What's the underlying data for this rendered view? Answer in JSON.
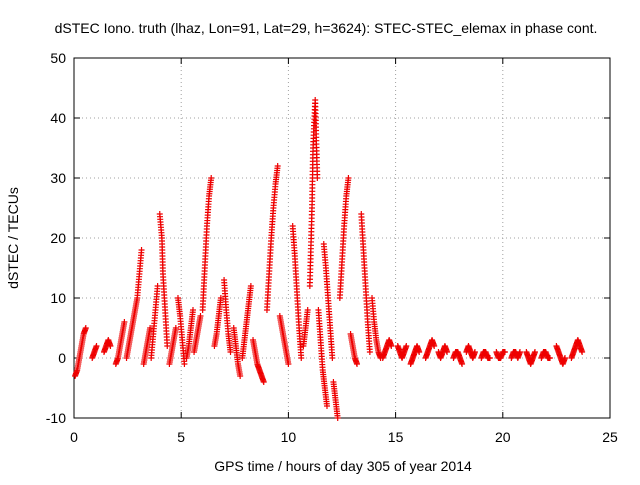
{
  "chart_data": {
    "type": "scatter",
    "title": "dSTEC Iono. truth (lhaz, Lon=91, Lat=29, h=3624): STEC-STEC_elemax in phase cont.",
    "xlabel": "GPS time / hours of day 305 of year 2014",
    "ylabel": "dSTEC  / TECUs",
    "xlim": [
      0,
      25
    ],
    "ylim": [
      -10,
      50
    ],
    "x_ticks": [
      0,
      5,
      10,
      15,
      20,
      25
    ],
    "y_ticks": [
      -10,
      0,
      10,
      20,
      30,
      40,
      50
    ],
    "x_tick_labels": [
      "0",
      "5",
      "10",
      "15",
      "20",
      "25"
    ],
    "y_tick_labels": [
      "-10",
      "0",
      "10",
      "20",
      "30",
      "40",
      "50"
    ],
    "grid": true,
    "legend": "none",
    "marker": "+",
    "series_color": "#ee0000",
    "arcs": [
      {
        "x": [
          0.05,
          0.15,
          0.25,
          0.35,
          0.45,
          0.55
        ],
        "y": [
          -3,
          -2,
          0,
          2,
          4,
          5
        ]
      },
      {
        "x": [
          0.85,
          0.95,
          1.05
        ],
        "y": [
          0,
          1,
          2
        ]
      },
      {
        "x": [
          1.4,
          1.5,
          1.6,
          1.7
        ],
        "y": [
          1,
          2,
          3,
          2
        ]
      },
      {
        "x": [
          1.95,
          2.05,
          2.15,
          2.25,
          2.35
        ],
        "y": [
          -1,
          0,
          2,
          4,
          6
        ]
      },
      {
        "x": [
          2.45,
          2.55,
          2.65,
          2.75,
          2.85,
          2.95,
          3.05,
          3.15
        ],
        "y": [
          0,
          2,
          4,
          6,
          8,
          10,
          14,
          18
        ]
      },
      {
        "x": [
          3.25,
          3.35,
          3.45,
          3.55
        ],
        "y": [
          -1,
          1,
          3,
          5
        ]
      },
      {
        "x": [
          3.6,
          3.7,
          3.8,
          3.9
        ],
        "y": [
          0,
          4,
          8,
          12
        ]
      },
      {
        "x": [
          4.0,
          4.1,
          4.15,
          4.25,
          4.35
        ],
        "y": [
          24,
          20,
          14,
          8,
          2
        ]
      },
      {
        "x": [
          4.45,
          4.55,
          4.65,
          4.75
        ],
        "y": [
          -1,
          1,
          3,
          5
        ]
      },
      {
        "x": [
          4.85,
          4.95,
          5.05,
          5.15
        ],
        "y": [
          10,
          7,
          3,
          -1
        ]
      },
      {
        "x": [
          5.25,
          5.35,
          5.45,
          5.55
        ],
        "y": [
          0,
          2,
          5,
          8
        ]
      },
      {
        "x": [
          5.6,
          5.7,
          5.8,
          5.9
        ],
        "y": [
          1,
          3,
          5,
          7
        ]
      },
      {
        "x": [
          6.0,
          6.1,
          6.2,
          6.3,
          6.4
        ],
        "y": [
          8,
          15,
          22,
          27,
          30
        ]
      },
      {
        "x": [
          6.55,
          6.65,
          6.75,
          6.85
        ],
        "y": [
          2,
          4,
          7,
          10
        ]
      },
      {
        "x": [
          7.0,
          7.1,
          7.2,
          7.3
        ],
        "y": [
          13,
          8,
          4,
          1
        ]
      },
      {
        "x": [
          7.45,
          7.55,
          7.65,
          7.75
        ],
        "y": [
          5,
          2,
          -1,
          -3
        ]
      },
      {
        "x": [
          7.85,
          7.95,
          8.05,
          8.15,
          8.25
        ],
        "y": [
          0,
          3,
          6,
          9,
          12
        ]
      },
      {
        "x": [
          8.35,
          8.45,
          8.55,
          8.65,
          8.75,
          8.85
        ],
        "y": [
          3,
          1,
          -1,
          -2,
          -3,
          -4
        ]
      },
      {
        "x": [
          9.0,
          9.1,
          9.2,
          9.3,
          9.4,
          9.5
        ],
        "y": [
          8,
          14,
          20,
          25,
          29,
          32
        ]
      },
      {
        "x": [
          9.6,
          9.7,
          9.8,
          9.9,
          10.0
        ],
        "y": [
          7,
          5,
          3,
          1,
          -1
        ]
      },
      {
        "x": [
          10.2,
          10.3,
          10.4,
          10.5,
          10.6
        ],
        "y": [
          22,
          17,
          11,
          5,
          0
        ]
      },
      {
        "x": [
          10.7,
          10.8,
          10.9
        ],
        "y": [
          2,
          5,
          8
        ]
      },
      {
        "x": [
          11.0,
          11.1,
          11.15,
          11.25,
          11.35
        ],
        "y": [
          12,
          25,
          35,
          43,
          30
        ]
      },
      {
        "x": [
          11.4,
          11.5,
          11.6,
          11.7,
          11.8
        ],
        "y": [
          8,
          3,
          -2,
          -5,
          -8
        ]
      },
      {
        "x": [
          11.65,
          11.75,
          11.85,
          11.95,
          12.05
        ],
        "y": [
          19,
          15,
          10,
          5,
          0
        ]
      },
      {
        "x": [
          12.1,
          12.2,
          12.3
        ],
        "y": [
          -4,
          -7,
          -10
        ]
      },
      {
        "x": [
          12.4,
          12.5,
          12.6,
          12.7,
          12.8
        ],
        "y": [
          10,
          16,
          22,
          27,
          30
        ]
      },
      {
        "x": [
          12.9,
          13.0,
          13.1,
          13.2
        ],
        "y": [
          4,
          2,
          0,
          -1
        ]
      },
      {
        "x": [
          13.4,
          13.5,
          13.6,
          13.7,
          13.8
        ],
        "y": [
          24,
          18,
          12,
          6,
          1
        ]
      },
      {
        "x": [
          13.9,
          14.0,
          14.1,
          14.2,
          14.3
        ],
        "y": [
          10,
          6,
          3,
          1,
          0
        ]
      },
      {
        "x": [
          14.4,
          14.5,
          14.6,
          14.7,
          14.8
        ],
        "y": [
          0,
          1,
          2,
          3,
          2
        ]
      },
      {
        "x": [
          15.1,
          15.2,
          15.3,
          15.4,
          15.5
        ],
        "y": [
          2,
          1,
          0,
          1,
          2
        ]
      },
      {
        "x": [
          15.7,
          15.8,
          15.9,
          16.0,
          16.1
        ],
        "y": [
          -1,
          0,
          1,
          2,
          1
        ]
      },
      {
        "x": [
          16.4,
          16.5,
          16.6,
          16.7,
          16.8
        ],
        "y": [
          0,
          1,
          2,
          3,
          2
        ]
      },
      {
        "x": [
          17.0,
          17.1,
          17.2,
          17.3,
          17.4
        ],
        "y": [
          1,
          0,
          1,
          2,
          1
        ]
      },
      {
        "x": [
          17.7,
          17.8,
          17.9,
          18.0,
          18.1
        ],
        "y": [
          0,
          1,
          1,
          0,
          -1
        ]
      },
      {
        "x": [
          18.3,
          18.4,
          18.5,
          18.6,
          18.7
        ],
        "y": [
          1,
          2,
          1,
          0,
          1
        ]
      },
      {
        "x": [
          19.0,
          19.1,
          19.2,
          19.3,
          19.4
        ],
        "y": [
          0,
          1,
          1,
          0,
          0
        ]
      },
      {
        "x": [
          19.7,
          19.8,
          19.9,
          20.0,
          20.1
        ],
        "y": [
          1,
          0,
          0,
          1,
          1
        ]
      },
      {
        "x": [
          20.4,
          20.5,
          20.6,
          20.7,
          20.8
        ],
        "y": [
          0,
          1,
          1,
          0,
          1
        ]
      },
      {
        "x": [
          21.1,
          21.2,
          21.3,
          21.4,
          21.5
        ],
        "y": [
          1,
          0,
          -1,
          0,
          1
        ]
      },
      {
        "x": [
          21.8,
          21.9,
          22.0,
          22.1,
          22.2
        ],
        "y": [
          0,
          1,
          1,
          0,
          0
        ]
      },
      {
        "x": [
          22.5,
          22.6,
          22.7,
          22.8,
          22.9
        ],
        "y": [
          2,
          1,
          0,
          -1,
          0
        ]
      },
      {
        "x": [
          23.2,
          23.3,
          23.4,
          23.5,
          23.6,
          23.7
        ],
        "y": [
          0,
          1,
          2,
          3,
          2,
          1
        ]
      }
    ]
  }
}
